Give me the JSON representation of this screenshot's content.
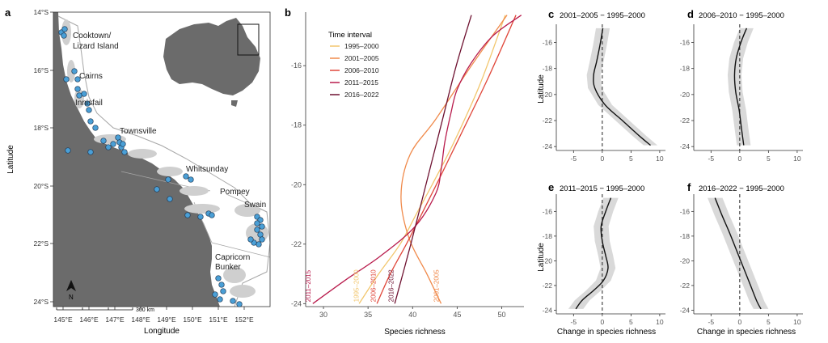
{
  "panel_letters": [
    "a",
    "b",
    "c",
    "d",
    "e",
    "f"
  ],
  "map": {
    "xlabel": "Longitude",
    "ylabel": "Latitude",
    "lon_ticks": [
      "145°E",
      "146°E",
      "147°E",
      "148°E",
      "149°E",
      "150°E",
      "151°E",
      "152°E"
    ],
    "lat_ticks": [
      "14°S",
      "16°S",
      "18°S",
      "20°S",
      "22°S",
      "24°S"
    ],
    "regions": [
      "Cooktown/",
      "Lizard Island",
      "Cairns",
      "Innisfail",
      "Townsville",
      "Whitsunday",
      "Pompey",
      "Swain",
      "Capricorn",
      "Bunker"
    ],
    "north_label": "N",
    "scale_label": "300 km",
    "colors": {
      "land": "#6b6b6b",
      "sea": "#ffffff",
      "reef": "#cfcfcf",
      "site": "#4a9fd6",
      "site_edge": "#1f3b57",
      "australia": "#6b6b6b"
    }
  },
  "chart_data": [
    {
      "panel": "b",
      "type": "line",
      "title": "",
      "xlabel": "Species richness",
      "ylabel": "",
      "xlim": [
        28,
        52.5
      ],
      "ylim": [
        -24.1,
        -14.2
      ],
      "xticks": [
        30,
        35,
        40,
        45,
        50
      ],
      "yticks": [
        -16,
        -18,
        -20,
        -22,
        -24
      ],
      "legend_title": "Time interval",
      "legend_position": "top-left",
      "grid": false,
      "series": [
        {
          "name": "1995–2000",
          "color": "#f2c66d",
          "x": [
            34.0,
            36.2,
            38.6,
            40.4,
            42.2,
            44.6,
            47.6,
            50.4
          ],
          "y": [
            -24.0,
            -23.0,
            -22.0,
            -21.0,
            -20.0,
            -18.6,
            -16.6,
            -14.3
          ]
        },
        {
          "name": "2001–2005",
          "color": "#f08a4b",
          "x": [
            43.2,
            41.6,
            39.6,
            38.7,
            39.7,
            42.6,
            46.6,
            50.6
          ],
          "y": [
            -24.0,
            -23.0,
            -21.8,
            -20.4,
            -19.0,
            -17.8,
            -16.0,
            -14.3
          ]
        },
        {
          "name": "2006–2010",
          "color": "#e0473a",
          "x": [
            36.0,
            37.5,
            39.3,
            41.0,
            43.0,
            45.6,
            48.5,
            51.6
          ],
          "y": [
            -24.0,
            -23.0,
            -22.0,
            -21.0,
            -19.8,
            -18.2,
            -16.4,
            -14.3
          ]
        },
        {
          "name": "2011–2015",
          "color": "#b81b4c",
          "x": [
            28.8,
            32.5,
            36.4,
            40.3,
            42.6,
            43.2,
            43.6,
            44.3,
            45.0,
            46.6,
            49.0,
            52.2
          ],
          "y": [
            -24.0,
            -23.2,
            -22.4,
            -21.4,
            -20.3,
            -19.5,
            -18.6,
            -17.6,
            -16.8,
            -15.9,
            -15.0,
            -14.3
          ]
        },
        {
          "name": "2016–2022",
          "color": "#6e1130",
          "x": [
            38.0,
            39.8,
            41.5,
            43.2,
            44.9,
            46.6
          ],
          "y": [
            -24.0,
            -22.0,
            -20.0,
            -18.0,
            -16.0,
            -14.3
          ]
        }
      ],
      "line_labels": [
        "2011–2015",
        "1995–2000",
        "2006–2010",
        "2016–2022",
        "2001–2005"
      ]
    },
    {
      "panel": "c",
      "type": "line",
      "title": "2001–2005 − 1995–2000",
      "xlabel": "",
      "ylabel": "Latitude",
      "xlim": [
        -8,
        11
      ],
      "ylim": [
        -24.3,
        -14.6
      ],
      "xticks": [
        -5,
        0,
        5,
        10
      ],
      "yticks": [
        -16,
        -18,
        -20,
        -22,
        -24
      ],
      "reference_line_x": 0,
      "grid": false,
      "series": [
        {
          "x": [
            0.1,
            -0.4,
            -1.0,
            -1.5,
            -1.3,
            0.5,
            3.5,
            6.5,
            8.4
          ],
          "y": [
            -14.9,
            -16.2,
            -17.5,
            -18.5,
            -19.5,
            -20.8,
            -22.0,
            -23.2,
            -23.9
          ],
          "band": 1.2
        }
      ]
    },
    {
      "panel": "d",
      "type": "line",
      "title": "2006–2010 − 1995–2000",
      "xlabel": "",
      "ylabel": "",
      "xlim": [
        -8,
        11
      ],
      "ylim": [
        -24.3,
        -14.6
      ],
      "xticks": [
        -5,
        0,
        5,
        10
      ],
      "yticks": [
        -16,
        -18,
        -20,
        -22,
        -24
      ],
      "reference_line_x": 0,
      "grid": false,
      "series": [
        {
          "x": [
            1.2,
            0.2,
            -0.6,
            -0.9,
            -0.7,
            -0.1,
            0.3,
            0.7
          ],
          "y": [
            -14.9,
            -16.0,
            -17.2,
            -18.5,
            -19.8,
            -21.2,
            -22.6,
            -23.9
          ],
          "band": 1.2
        }
      ]
    },
    {
      "panel": "e",
      "type": "line",
      "title": "2011–2015 − 1995–2000",
      "xlabel": "Change in species richness",
      "ylabel": "Latitude",
      "xlim": [
        -8,
        11
      ],
      "ylim": [
        -24.3,
        -14.6
      ],
      "xticks": [
        -5,
        0,
        5,
        10
      ],
      "yticks": [
        -16,
        -18,
        -20,
        -22,
        -24
      ],
      "reference_line_x": 0,
      "grid": false,
      "series": [
        {
          "x": [
            1.5,
            0.6,
            -0.2,
            0.0,
            0.6,
            1.0,
            0.2,
            -1.5,
            -3.5,
            -4.6
          ],
          "y": [
            -14.9,
            -16.0,
            -17.2,
            -18.4,
            -19.6,
            -20.6,
            -21.6,
            -22.4,
            -23.2,
            -23.9
          ],
          "band": 1.3
        }
      ]
    },
    {
      "panel": "f",
      "type": "line",
      "title": "2016–2022 − 1995–2000",
      "xlabel": "Change in species richness",
      "ylabel": "",
      "xlim": [
        -8,
        11
      ],
      "ylim": [
        -24.3,
        -14.6
      ],
      "xticks": [
        -5,
        0,
        5,
        10
      ],
      "yticks": [
        -16,
        -18,
        -20,
        -22,
        -24
      ],
      "reference_line_x": 0,
      "grid": false,
      "series": [
        {
          "x": [
            -4.3,
            -3.1,
            -1.8,
            -0.6,
            0.6,
            1.8,
            3.0,
            3.7
          ],
          "y": [
            -14.9,
            -16.3,
            -17.7,
            -19.1,
            -20.5,
            -21.9,
            -23.3,
            -23.9
          ],
          "band": 1.3
        }
      ]
    }
  ]
}
